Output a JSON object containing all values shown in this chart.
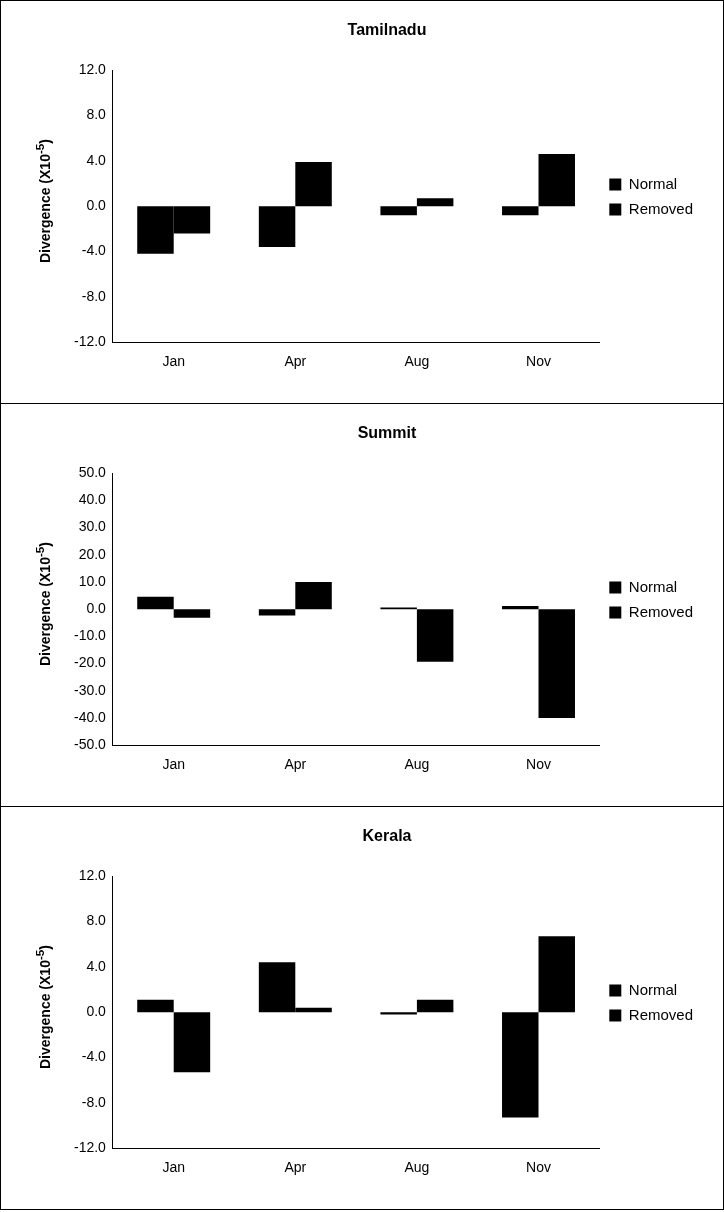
{
  "chart_data": [
    {
      "type": "bar",
      "title": "Tamilnadu",
      "ylabel": "Divergence (X10$^{-5}$)",
      "categories": [
        "Jan",
        "Apr",
        "Aug",
        "Nov"
      ],
      "series": [
        {
          "name": "Normal",
          "color": "#000000",
          "values": [
            -4.2,
            -3.6,
            -0.8,
            -0.8
          ]
        },
        {
          "name": "Removed",
          "color": "#000000",
          "values": [
            -2.4,
            3.9,
            0.7,
            4.6
          ]
        }
      ],
      "ylim": [
        -12,
        12
      ],
      "yticks": [
        {
          "value": -12,
          "label": "-12.0"
        },
        {
          "value": -8,
          "label": "-8.0"
        },
        {
          "value": -4,
          "label": "-4.0"
        },
        {
          "value": 0,
          "label": "0.0"
        },
        {
          "value": 4,
          "label": "4.0"
        },
        {
          "value": 8,
          "label": "8.0"
        },
        {
          "value": 12,
          "label": "12.0"
        }
      ],
      "grid": false,
      "legend": "right"
    },
    {
      "type": "bar",
      "title": "Summit",
      "ylabel": "Divergence (X10$^{-5}$)",
      "categories": [
        "Jan",
        "Apr",
        "Aug",
        "Nov"
      ],
      "series": [
        {
          "name": "Normal",
          "color": "#000000",
          "values": [
            4.6,
            -2.3,
            0.6,
            1.2
          ]
        },
        {
          "name": "Removed",
          "color": "#000000",
          "values": [
            -3.1,
            10,
            -19.3,
            -40
          ]
        }
      ],
      "ylim": [
        -50,
        50
      ],
      "yticks": [
        {
          "value": -50,
          "label": "-50.0"
        },
        {
          "value": -40,
          "label": "-40.0"
        },
        {
          "value": -30,
          "label": "-30.0"
        },
        {
          "value": -20,
          "label": "-20.0"
        },
        {
          "value": -10,
          "label": "-10.0"
        },
        {
          "value": 0,
          "label": "0.0"
        },
        {
          "value": 10,
          "label": "10.0"
        },
        {
          "value": 20,
          "label": "20.0"
        },
        {
          "value": 30,
          "label": "30.0"
        },
        {
          "value": 40,
          "label": "40.0"
        },
        {
          "value": 50,
          "label": "50.0"
        }
      ],
      "grid": false,
      "legend": "right"
    },
    {
      "type": "bar",
      "title": "Kerala",
      "ylabel": "Divergence (X10$^{-5}$)",
      "categories": [
        "Jan",
        "Apr",
        "Aug",
        "Nov"
      ],
      "series": [
        {
          "name": "Normal",
          "color": "#000000",
          "values": [
            1.1,
            4.4,
            -0.2,
            -9.3
          ]
        },
        {
          "name": "Removed",
          "color": "#000000",
          "values": [
            -5.3,
            0.4,
            1.1,
            6.7
          ]
        }
      ],
      "ylim": [
        -12,
        12
      ],
      "yticks": [
        {
          "value": -12,
          "label": "-12.0"
        },
        {
          "value": -8,
          "label": "-8.0"
        },
        {
          "value": -4,
          "label": "-4.0"
        },
        {
          "value": 0,
          "label": "0.0"
        },
        {
          "value": 4,
          "label": "4.0"
        },
        {
          "value": 8,
          "label": "8.0"
        },
        {
          "value": 12,
          "label": "12.0"
        }
      ],
      "grid": false,
      "legend": "right"
    }
  ]
}
